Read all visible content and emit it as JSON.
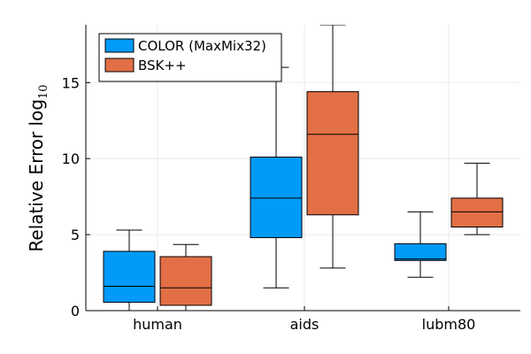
{
  "chart_data": {
    "type": "box",
    "title": "",
    "xlabel": "",
    "ylabel": "Relative Error log",
    "ylabel_subscript": "10",
    "ylim": [
      0,
      18.8
    ],
    "yticks": [
      0,
      5,
      10,
      15
    ],
    "grid": true,
    "legend_position": "top-left",
    "categories": [
      "human",
      "aids",
      "lubm80"
    ],
    "series": [
      {
        "name": "COLOR (MaxMix32)",
        "color": "#009af9",
        "boxes": [
          {
            "category": "human",
            "min": 0.0,
            "q1": 0.55,
            "median": 1.6,
            "q3": 3.9,
            "max": 5.3
          },
          {
            "category": "aids",
            "min": 1.5,
            "q1": 4.8,
            "median": 7.4,
            "q3": 10.1,
            "max": 16.0
          },
          {
            "category": "lubm80",
            "min": 2.2,
            "q1": 3.3,
            "median": 3.4,
            "q3": 4.4,
            "max": 6.5
          }
        ]
      },
      {
        "name": "BSK++",
        "color": "#e26f46",
        "boxes": [
          {
            "category": "human",
            "min": 0.0,
            "q1": 0.35,
            "median": 1.5,
            "q3": 3.55,
            "max": 4.35
          },
          {
            "category": "aids",
            "min": 2.8,
            "q1": 6.3,
            "median": 11.6,
            "q3": 14.4,
            "max": 18.8
          },
          {
            "category": "lubm80",
            "min": 5.0,
            "q1": 5.5,
            "median": 6.5,
            "q3": 7.4,
            "max": 9.7
          }
        ]
      }
    ]
  }
}
